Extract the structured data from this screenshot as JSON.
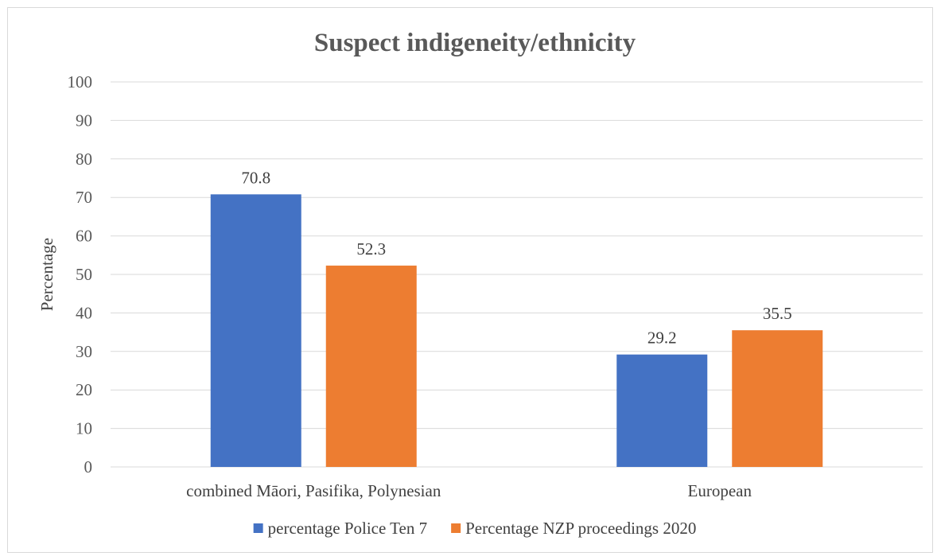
{
  "chart_data": {
    "type": "bar",
    "title": "Suspect indigeneity/ethnicity",
    "xlabel": "",
    "ylabel": "Percentage",
    "categories": [
      "combined Māori, Pasifika, Polynesian",
      "European"
    ],
    "series": [
      {
        "name": "percentage Police Ten 7",
        "values": [
          70.8,
          29.2
        ],
        "color": "#4472C4"
      },
      {
        "name": "Percentage NZP proceedings 2020",
        "values": [
          52.3,
          35.5
        ],
        "color": "#ED7D31"
      }
    ],
    "ylim": [
      0,
      100
    ],
    "yticks": [
      0,
      10,
      20,
      30,
      40,
      50,
      60,
      70,
      80,
      90,
      100
    ],
    "grid": true,
    "legend_position": "bottom",
    "data_labels": true
  }
}
